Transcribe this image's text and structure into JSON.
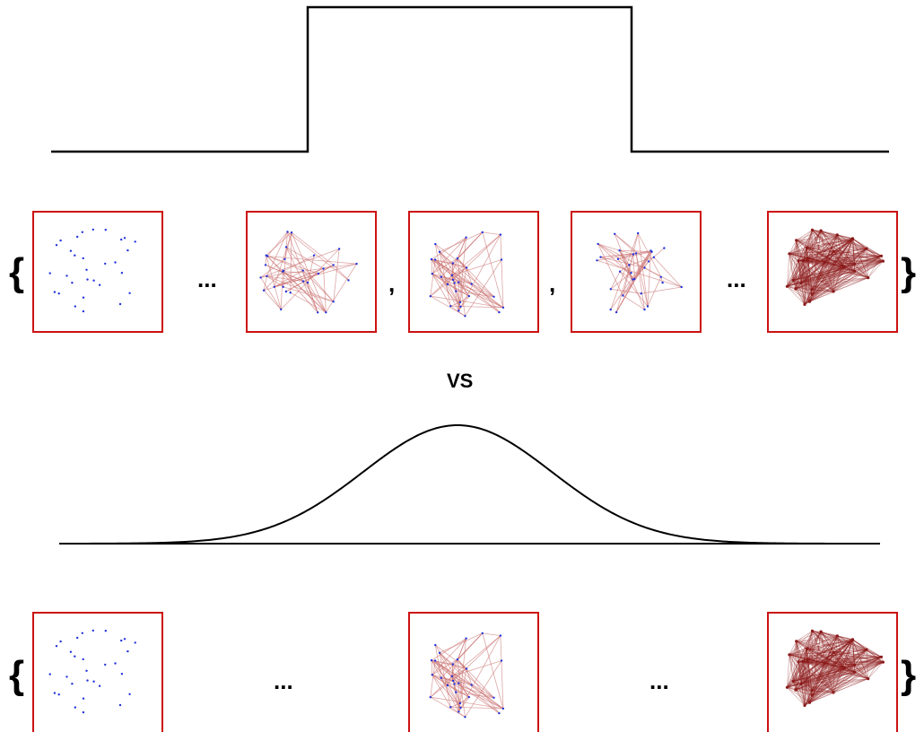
{
  "divider_label": "VS",
  "top_row": {
    "open_brace": "{",
    "close_brace": "}",
    "separators": [
      "...",
      ",",
      ",",
      "..."
    ]
  },
  "bottom_row": {
    "open_brace": "{",
    "close_brace": "}",
    "separators": [
      "...",
      "..."
    ]
  },
  "colors": {
    "frame": "#cc1111",
    "node": "#2233dd",
    "edge": "#c86a6a",
    "dense_edge": "#8b1a1a",
    "curve": "#000000"
  },
  "graphs": {
    "empty": "empty-graph",
    "sparse_a": "sparse-graph",
    "sparse_b": "medium-graph",
    "sparse_c": "sparse-graph",
    "complete": "complete-graph"
  }
}
